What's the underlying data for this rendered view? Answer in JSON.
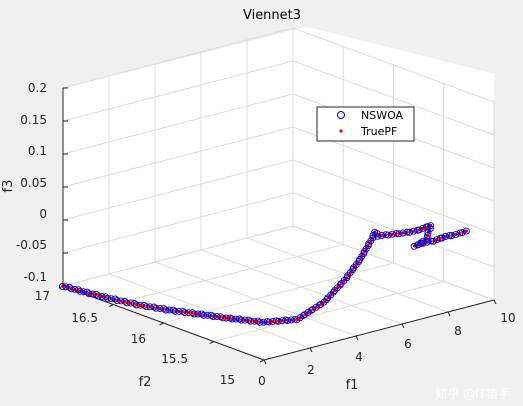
{
  "chart_data": {
    "type": "scatter",
    "title": "Viennet3",
    "xlabel": "f1",
    "ylabel": "f2",
    "zlabel": "f3",
    "xlim": [
      0,
      10
    ],
    "ylim": [
      15,
      17
    ],
    "zlim": [
      -0.1,
      0.2
    ],
    "xticks": [
      "0",
      "2",
      "4",
      "6",
      "8",
      "10"
    ],
    "yticks": [
      "15",
      "15.5",
      "16",
      "16.5",
      "17"
    ],
    "zticks": [
      "-0.1",
      "-0.05",
      "0",
      "0.05",
      "0.1",
      "0.15",
      "0.2"
    ],
    "grid": true,
    "legend_position": "top-right",
    "series": [
      {
        "name": "NSWOA",
        "marker": "open-circle",
        "color": "#0000cc"
      },
      {
        "name": "TruePF",
        "marker": "dot",
        "color": "#ff0000"
      }
    ],
    "points": [
      [
        0.0,
        17.0,
        -0.1
      ],
      [
        0.15,
        16.8,
        -0.1
      ],
      [
        0.35,
        16.6,
        -0.1
      ],
      [
        0.6,
        16.4,
        -0.1
      ],
      [
        1.0,
        16.2,
        -0.1
      ],
      [
        1.5,
        16.0,
        -0.1
      ],
      [
        2.0,
        15.8,
        -0.1
      ],
      [
        2.6,
        15.6,
        -0.1
      ],
      [
        3.2,
        15.4,
        -0.09
      ],
      [
        3.7,
        15.25,
        -0.06
      ],
      [
        4.1,
        15.12,
        -0.02
      ],
      [
        4.4,
        15.05,
        0.01
      ],
      [
        4.8,
        15.02,
        0.04
      ],
      [
        4.9,
        15.02,
        0.048
      ],
      [
        5.1,
        15.03,
        0.04
      ],
      [
        5.8,
        15.05,
        0.035
      ],
      [
        6.5,
        15.07,
        0.03
      ],
      [
        7.0,
        15.08,
        0.028
      ],
      [
        7.5,
        15.08,
        0.03
      ],
      [
        7.6,
        15.08,
        0.03
      ],
      [
        7.5,
        15.1,
        0.01
      ],
      [
        7.3,
        15.14,
        0.0
      ],
      [
        7.25,
        15.16,
        -0.002
      ],
      [
        7.6,
        15.15,
        0.0
      ],
      [
        8.0,
        15.14,
        0.0
      ],
      [
        8.5,
        15.14,
        0.002
      ],
      [
        9.0,
        15.15,
        0.0
      ],
      [
        9.5,
        15.16,
        0.0
      ]
    ]
  },
  "watermark": "知乎 @IT猿手"
}
